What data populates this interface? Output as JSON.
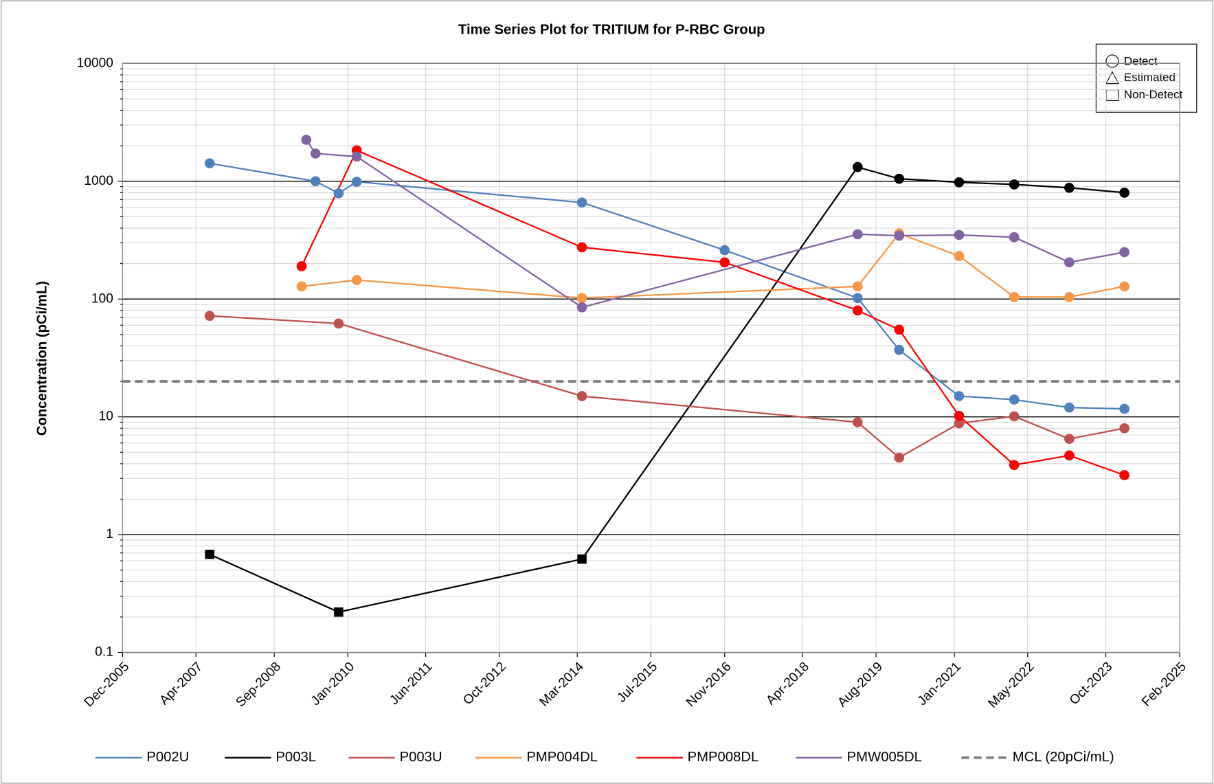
{
  "chart_data": {
    "type": "line",
    "title": "Time Series Plot for TRITIUM for P-RBC Group",
    "ylabel": "Concentration (pCi/mL)",
    "log_y": true,
    "grid": true,
    "xlim": [
      "Dec-2005",
      "Feb-2025"
    ],
    "xticks": [
      "Dec-2005",
      "Apr-2007",
      "Sep-2008",
      "Jan-2010",
      "Jun-2011",
      "Oct-2012",
      "Mar-2014",
      "Jul-2015",
      "Nov-2016",
      "Apr-2018",
      "Aug-2019",
      "Jan-2021",
      "May-2022",
      "Oct-2023",
      "Feb-2025"
    ],
    "ylim": [
      0.1,
      10000
    ],
    "yticks": [
      0.1,
      1,
      10,
      100,
      1000,
      10000
    ],
    "legend": "bottom",
    "marker_legend": [
      "Detect",
      "Estimated",
      "Non-Detect"
    ],
    "series": [
      {
        "name": "P002U",
        "color": "#4f81bd",
        "x": [
          "Jul-2007",
          "Jun-2009",
          "Nov-2009",
          "Mar-2010",
          "Apr-2014",
          "Nov-2016",
          "Apr-2019",
          "Jan-2020",
          "Feb-2021",
          "Feb-2022",
          "Feb-2023",
          "Feb-2024"
        ],
        "values": [
          1420,
          1000,
          790,
          990,
          660,
          260,
          102,
          37,
          15,
          14,
          12,
          11.7
        ]
      },
      {
        "name": "P003L",
        "color": "#000000",
        "x": [
          "Jul-2007",
          "Nov-2009",
          "Apr-2014",
          "Apr-2019",
          "Jan-2020",
          "Feb-2021",
          "Feb-2022",
          "Feb-2023",
          "Feb-2024"
        ],
        "values": [
          0.68,
          0.22,
          0.62,
          1320,
          1050,
          980,
          940,
          880,
          800
        ],
        "markers": [
          "square",
          "square",
          "square",
          "circle",
          "circle",
          "circle",
          "circle",
          "circle",
          "circle"
        ]
      },
      {
        "name": "P003U",
        "color": "#c0504d",
        "x": [
          "Jul-2007",
          "Nov-2009",
          "Apr-2014",
          "Apr-2019",
          "Jan-2020",
          "Feb-2021",
          "Feb-2022",
          "Feb-2023",
          "Feb-2024"
        ],
        "values": [
          72,
          62,
          15,
          9,
          4.5,
          8.8,
          10.1,
          6.5,
          8
        ]
      },
      {
        "name": "PMP004DL",
        "color": "#f79646",
        "x": [
          "Mar-2009",
          "Mar-2010",
          "Apr-2014",
          "Apr-2019",
          "Jan-2020",
          "Feb-2021",
          "Feb-2022",
          "Feb-2023",
          "Feb-2024"
        ],
        "values": [
          128,
          145,
          102,
          128,
          360,
          232,
          104,
          104,
          128
        ]
      },
      {
        "name": "PMP008DL",
        "color": "#ff0000",
        "x": [
          "Mar-2009",
          "Mar-2010",
          "Apr-2014",
          "Nov-2016",
          "Apr-2019",
          "Jan-2020",
          "Feb-2021",
          "Feb-2022",
          "Feb-2023",
          "Feb-2024"
        ],
        "values": [
          190,
          1830,
          275,
          205,
          80,
          55,
          10.2,
          3.9,
          4.7,
          3.2
        ]
      },
      {
        "name": "PMW005DL",
        "color": "#8064a2",
        "x": [
          "Apr-2009",
          "Jun-2009",
          "Mar-2010",
          "Apr-2014",
          "Apr-2019",
          "Jan-2020",
          "Feb-2021",
          "Feb-2022",
          "Feb-2023",
          "Feb-2024"
        ],
        "values": [
          2250,
          1720,
          1620,
          85,
          355,
          345,
          350,
          335,
          205,
          250
        ]
      }
    ],
    "reference_line": {
      "name": "MCL (20pCi/mL)",
      "value": 20,
      "color": "#7f7f7f"
    }
  }
}
